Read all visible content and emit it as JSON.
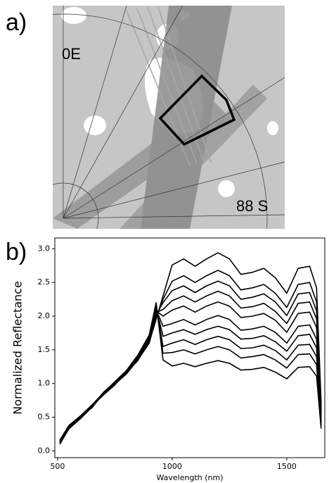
{
  "panel_a": {
    "label": "a)",
    "lon_label": "0E",
    "lat_label": "88 S"
  },
  "chart_data": {
    "type": "line",
    "panel_label": "b)",
    "x_label": "Wavelength (nm)",
    "y_label": "Normalized Reflectance",
    "xlim": [
      488,
      1666
    ],
    "xticks": [
      500,
      1000,
      1500
    ],
    "ylim": [
      -0.1,
      3.16
    ],
    "yticks": [
      {
        "value": 0,
        "label": "0.0"
      },
      0.5,
      {
        "value": 1,
        "label": "1.0"
      },
      1.5,
      {
        "value": 2,
        "label": "2.0"
      },
      2.5,
      {
        "value": 3,
        "label": "3.0"
      }
    ],
    "x": [
      510,
      550,
      600,
      650,
      700,
      750,
      800,
      850,
      900,
      930,
      960,
      1000,
      1050,
      1100,
      1150,
      1200,
      1250,
      1300,
      1350,
      1400,
      1450,
      1500,
      1550,
      1600,
      1630,
      1650
    ],
    "series": [
      {
        "color": "#000000",
        "values": [
          0.15,
          0.36,
          0.5,
          0.66,
          0.85,
          1.0,
          1.15,
          1.36,
          1.62,
          1.95,
          2.3,
          2.76,
          2.85,
          2.74,
          2.85,
          2.94,
          2.85,
          2.62,
          2.65,
          2.71,
          2.57,
          2.34,
          2.71,
          2.74,
          2.42,
          0.71
        ]
      },
      {
        "color": "#000000",
        "values": [
          0.13,
          0.34,
          0.49,
          0.65,
          0.84,
          0.99,
          1.14,
          1.35,
          1.6,
          1.98,
          2.25,
          2.52,
          2.6,
          2.5,
          2.6,
          2.68,
          2.6,
          2.39,
          2.42,
          2.47,
          2.34,
          2.13,
          2.47,
          2.5,
          2.21,
          0.65
        ]
      },
      {
        "color": "#000000",
        "values": [
          0.12,
          0.35,
          0.51,
          0.64,
          0.86,
          1.01,
          1.16,
          1.34,
          1.63,
          2.02,
          2.2,
          2.38,
          2.45,
          2.35,
          2.45,
          2.52,
          2.45,
          2.25,
          2.28,
          2.33,
          2.21,
          2.01,
          2.33,
          2.35,
          2.08,
          0.61
        ]
      },
      {
        "color": "#000000",
        "values": [
          0.14,
          0.37,
          0.5,
          0.67,
          0.83,
          0.98,
          1.17,
          1.37,
          1.65,
          2.05,
          2.1,
          2.23,
          2.3,
          2.21,
          2.3,
          2.37,
          2.3,
          2.12,
          2.14,
          2.19,
          2.07,
          1.89,
          2.19,
          2.21,
          1.96,
          0.58
        ]
      },
      {
        "color": "#000000",
        "values": [
          0.11,
          0.33,
          0.48,
          0.65,
          0.85,
          1.0,
          1.15,
          1.38,
          1.64,
          2.08,
          2.0,
          2.09,
          2.15,
          2.06,
          2.15,
          2.21,
          2.15,
          1.98,
          2.0,
          2.04,
          1.94,
          1.76,
          2.04,
          2.06,
          1.83,
          0.54
        ]
      },
      {
        "color": "#000000",
        "values": [
          0.16,
          0.38,
          0.52,
          0.68,
          0.86,
          1.02,
          1.18,
          1.39,
          1.66,
          2.1,
          1.85,
          1.89,
          1.95,
          1.87,
          1.95,
          2.01,
          1.95,
          1.79,
          1.81,
          1.85,
          1.76,
          1.6,
          1.85,
          1.87,
          1.66,
          0.49
        ]
      },
      {
        "color": "#000000",
        "values": [
          0.13,
          0.35,
          0.49,
          0.66,
          0.84,
          0.99,
          1.16,
          1.36,
          1.67,
          2.12,
          1.7,
          1.75,
          1.8,
          1.73,
          1.8,
          1.85,
          1.8,
          1.66,
          1.67,
          1.71,
          1.62,
          1.48,
          1.71,
          1.73,
          1.53,
          0.45
        ]
      },
      {
        "color": "#000000",
        "values": [
          0.1,
          0.34,
          0.5,
          0.67,
          0.85,
          1.01,
          1.17,
          1.4,
          1.68,
          2.15,
          1.55,
          1.6,
          1.65,
          1.58,
          1.65,
          1.7,
          1.65,
          1.52,
          1.53,
          1.57,
          1.49,
          1.35,
          1.57,
          1.58,
          1.4,
          0.41
        ]
      },
      {
        "color": "#000000",
        "values": [
          0.12,
          0.36,
          0.51,
          0.66,
          0.87,
          1.02,
          1.18,
          1.41,
          1.7,
          2.17,
          1.45,
          1.46,
          1.5,
          1.44,
          1.5,
          1.55,
          1.5,
          1.38,
          1.4,
          1.43,
          1.35,
          1.23,
          1.43,
          1.44,
          1.28,
          0.38
        ]
      },
      {
        "color": "#000000",
        "values": [
          0.14,
          0.37,
          0.52,
          0.68,
          0.86,
          1.03,
          1.19,
          1.42,
          1.72,
          2.2,
          1.35,
          1.26,
          1.3,
          1.25,
          1.3,
          1.34,
          1.3,
          1.2,
          1.21,
          1.24,
          1.17,
          1.07,
          1.24,
          1.25,
          1.11,
          0.33
        ]
      }
    ]
  }
}
